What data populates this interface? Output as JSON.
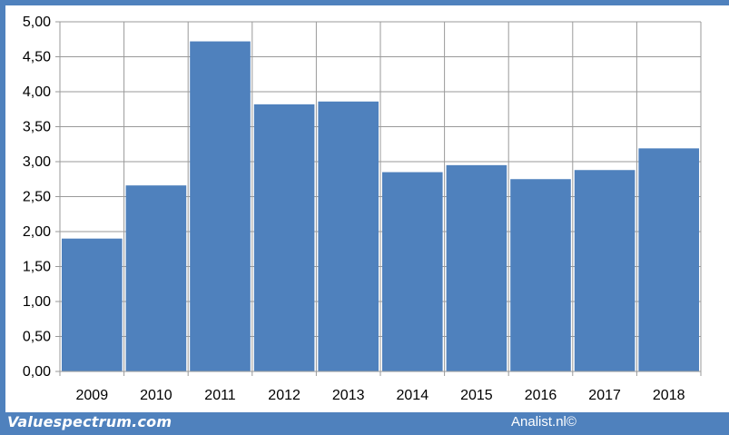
{
  "chart_data": {
    "type": "bar",
    "categories": [
      "2009",
      "2010",
      "2011",
      "2012",
      "2013",
      "2014",
      "2015",
      "2016",
      "2017",
      "2018"
    ],
    "values": [
      1.9,
      2.66,
      4.72,
      3.82,
      3.86,
      2.85,
      2.95,
      2.75,
      2.88,
      3.19
    ],
    "ylim": [
      0,
      5
    ],
    "yticks": [
      "0,00",
      "0,50",
      "1,00",
      "1,50",
      "2,00",
      "2,50",
      "3,00",
      "3,50",
      "4,00",
      "4,50",
      "5,00"
    ],
    "title": "",
    "xlabel": "",
    "ylabel": "",
    "grid": true,
    "bar_color": "#4f81bd"
  },
  "footer": {
    "left": "Valuespectrum.com",
    "right": "Analist.nl©"
  },
  "colors": {
    "frame": "#4f81bd",
    "grid": "#9a9a9a"
  }
}
